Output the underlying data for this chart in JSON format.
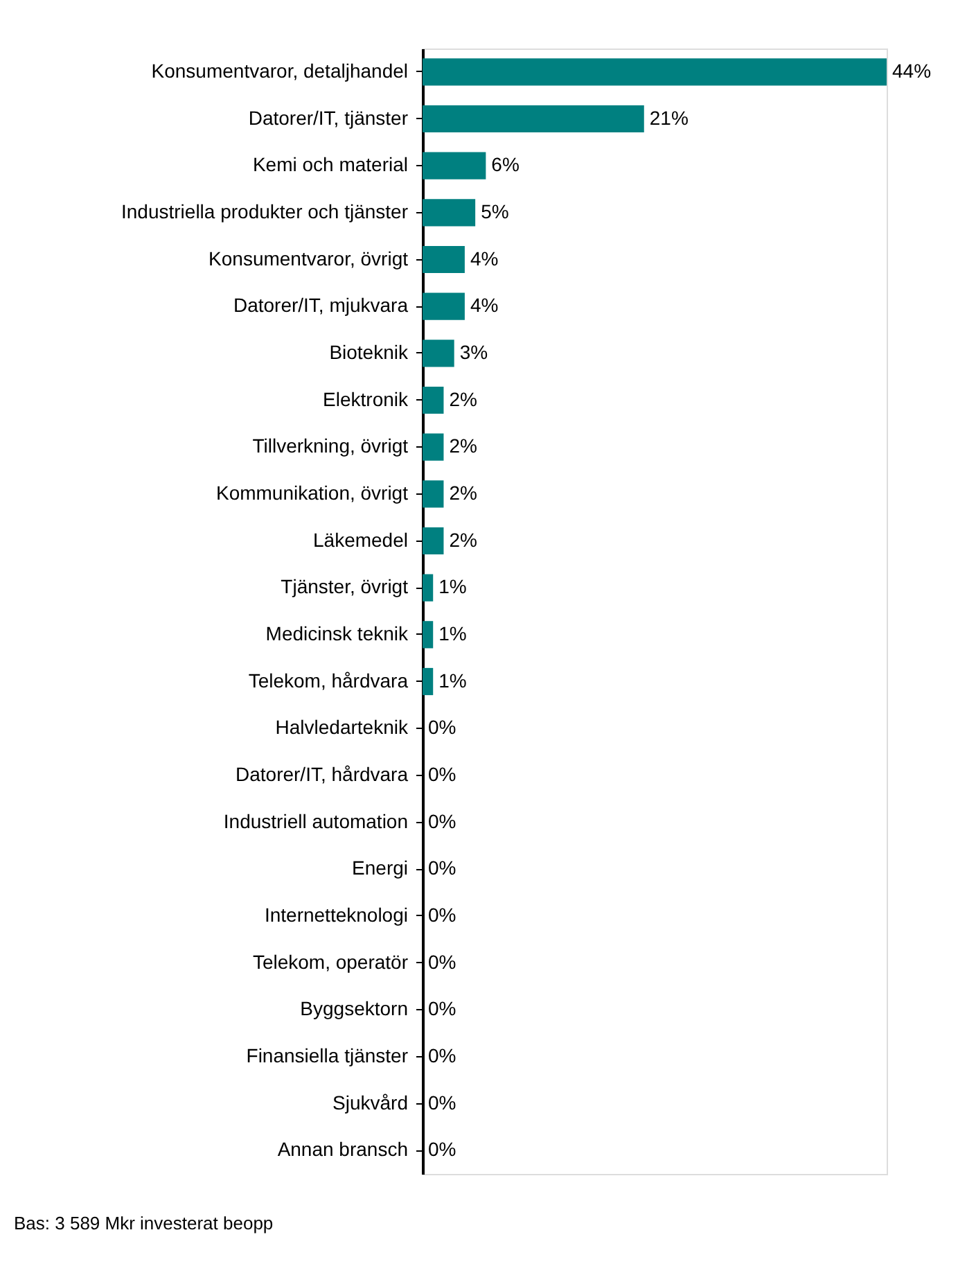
{
  "chart_data": {
    "type": "bar",
    "orientation": "horizontal",
    "categories": [
      "Konsumentvaror, detaljhandel",
      "Datorer/IT, tjänster",
      "Kemi och material",
      "Industriella produkter och tjänster",
      "Konsumentvaror, övrigt",
      "Datorer/IT, mjukvara",
      "Bioteknik",
      "Elektronik",
      "Tillverkning, övrigt",
      "Kommunikation, övrigt",
      "Läkemedel",
      "Tjänster, övrigt",
      "Medicinsk teknik",
      "Telekom, hårdvara",
      "Halvledarteknik",
      "Datorer/IT, hårdvara",
      "Industriell automation",
      "Energi",
      "Internetteknologi",
      "Telekom, operatör",
      "Byggsektorn",
      "Finansiella tjänster",
      "Sjukvård",
      "Annan bransch"
    ],
    "values": [
      44,
      21,
      6,
      5,
      4,
      4,
      3,
      2,
      2,
      2,
      2,
      1,
      1,
      1,
      0,
      0,
      0,
      0,
      0,
      0,
      0,
      0,
      0,
      0
    ],
    "value_labels": [
      "44%",
      "21%",
      "6%",
      "5%",
      "4%",
      "4%",
      "3%",
      "2%",
      "2%",
      "2%",
      "2%",
      "1%",
      "1%",
      "1%",
      "0%",
      "0%",
      "0%",
      "0%",
      "0%",
      "0%",
      "0%",
      "0%",
      "0%",
      "0%"
    ],
    "color": "#008080",
    "annotations": [
      "Bas: 3 589 Mkr investerat beopp"
    ]
  }
}
